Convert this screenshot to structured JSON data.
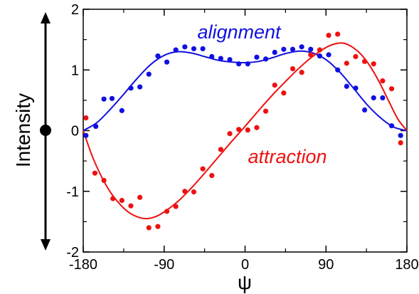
{
  "chart_data": {
    "type": "scatter",
    "xlabel": "ψ",
    "ylabel": "Intensity",
    "xlim": [
      -180,
      180
    ],
    "ylim": [
      -2,
      2
    ],
    "x_ticks": [
      -180,
      -90,
      0,
      90,
      180
    ],
    "y_ticks": [
      -2,
      -1,
      0,
      1,
      2
    ],
    "grid": false,
    "colors": {
      "alignment": "#1010e0",
      "attraction": "#ee1111"
    },
    "series": [
      {
        "name": "alignment",
        "color": "#1010e0",
        "points": [
          [
            -177,
            -0.08
          ],
          [
            -166,
            0.07
          ],
          [
            -157,
            0.52
          ],
          [
            -148,
            0.53
          ],
          [
            -137,
            0.33
          ],
          [
            -127,
            0.7
          ],
          [
            -117,
            0.72
          ],
          [
            -107,
            0.93
          ],
          [
            -97,
            1.23
          ],
          [
            -87,
            1.13
          ],
          [
            -77,
            1.33
          ],
          [
            -67,
            1.38
          ],
          [
            -57,
            1.35
          ],
          [
            -47,
            1.35
          ],
          [
            -37,
            1.22
          ],
          [
            -27,
            1.19
          ],
          [
            -17,
            1.17
          ],
          [
            -7,
            1.1
          ],
          [
            3,
            1.1
          ],
          [
            13,
            1.21
          ],
          [
            23,
            1.18
          ],
          [
            33,
            1.29
          ],
          [
            43,
            1.34
          ],
          [
            53,
            1.34
          ],
          [
            63,
            1.38
          ],
          [
            73,
            1.34
          ],
          [
            83,
            1.23
          ],
          [
            93,
            1.25
          ],
          [
            103,
            1.0
          ],
          [
            113,
            0.73
          ],
          [
            123,
            0.7
          ],
          [
            133,
            0.34
          ],
          [
            143,
            0.54
          ],
          [
            153,
            0.54
          ],
          [
            163,
            0.08
          ],
          [
            173,
            -0.08
          ]
        ],
        "fit": [
          [
            -180,
            0.0
          ],
          [
            -165,
            0.13
          ],
          [
            -150,
            0.35
          ],
          [
            -135,
            0.6
          ],
          [
            -120,
            0.86
          ],
          [
            -105,
            1.09
          ],
          [
            -90,
            1.24
          ],
          [
            -75,
            1.3
          ],
          [
            -60,
            1.28
          ],
          [
            -45,
            1.22
          ],
          [
            -30,
            1.16
          ],
          [
            -15,
            1.13
          ],
          [
            0,
            1.12
          ],
          [
            15,
            1.14
          ],
          [
            30,
            1.2
          ],
          [
            45,
            1.27
          ],
          [
            60,
            1.31
          ],
          [
            75,
            1.28
          ],
          [
            90,
            1.17
          ],
          [
            105,
            0.97
          ],
          [
            120,
            0.71
          ],
          [
            135,
            0.44
          ],
          [
            150,
            0.22
          ],
          [
            165,
            0.06
          ],
          [
            180,
            0.0
          ]
        ]
      },
      {
        "name": "attraction",
        "color": "#ee1111",
        "points": [
          [
            -177,
            0.21
          ],
          [
            -167,
            -0.7
          ],
          [
            -157,
            -0.82
          ],
          [
            -147,
            -1.12
          ],
          [
            -137,
            -1.15
          ],
          [
            -127,
            -1.24
          ],
          [
            -117,
            -1.1
          ],
          [
            -107,
            -1.6
          ],
          [
            -97,
            -1.58
          ],
          [
            -87,
            -1.33
          ],
          [
            -77,
            -1.25
          ],
          [
            -67,
            -1.0
          ],
          [
            -57,
            -1.01
          ],
          [
            -47,
            -0.63
          ],
          [
            -37,
            -0.74
          ],
          [
            -27,
            -0.31
          ],
          [
            -17,
            -0.05
          ],
          [
            -7,
            0.02
          ],
          [
            3,
            0.01
          ],
          [
            13,
            0.05
          ],
          [
            23,
            0.32
          ],
          [
            33,
            0.75
          ],
          [
            43,
            0.62
          ],
          [
            53,
            1.02
          ],
          [
            63,
            0.96
          ],
          [
            73,
            1.25
          ],
          [
            83,
            1.33
          ],
          [
            93,
            1.57
          ],
          [
            103,
            1.59
          ],
          [
            113,
            1.11
          ],
          [
            123,
            1.22
          ],
          [
            133,
            1.14
          ],
          [
            143,
            1.1
          ],
          [
            153,
            0.82
          ],
          [
            163,
            0.69
          ],
          [
            173,
            -0.2
          ]
        ],
        "fit": [
          [
            -180,
            0.0
          ],
          [
            -170,
            -0.42
          ],
          [
            -160,
            -0.75
          ],
          [
            -150,
            -1.01
          ],
          [
            -140,
            -1.2
          ],
          [
            -130,
            -1.34
          ],
          [
            -120,
            -1.42
          ],
          [
            -110,
            -1.45
          ],
          [
            -100,
            -1.42
          ],
          [
            -90,
            -1.34
          ],
          [
            -75,
            -1.17
          ],
          [
            -60,
            -0.95
          ],
          [
            -45,
            -0.7
          ],
          [
            -30,
            -0.44
          ],
          [
            -15,
            -0.18
          ],
          [
            0,
            0.07
          ],
          [
            15,
            0.33
          ],
          [
            30,
            0.58
          ],
          [
            45,
            0.81
          ],
          [
            60,
            1.03
          ],
          [
            75,
            1.22
          ],
          [
            90,
            1.37
          ],
          [
            100,
            1.43
          ],
          [
            110,
            1.44
          ],
          [
            120,
            1.37
          ],
          [
            130,
            1.24
          ],
          [
            140,
            1.04
          ],
          [
            150,
            0.78
          ],
          [
            160,
            0.48
          ],
          [
            170,
            0.19
          ],
          [
            180,
            0.0
          ]
        ]
      }
    ]
  }
}
